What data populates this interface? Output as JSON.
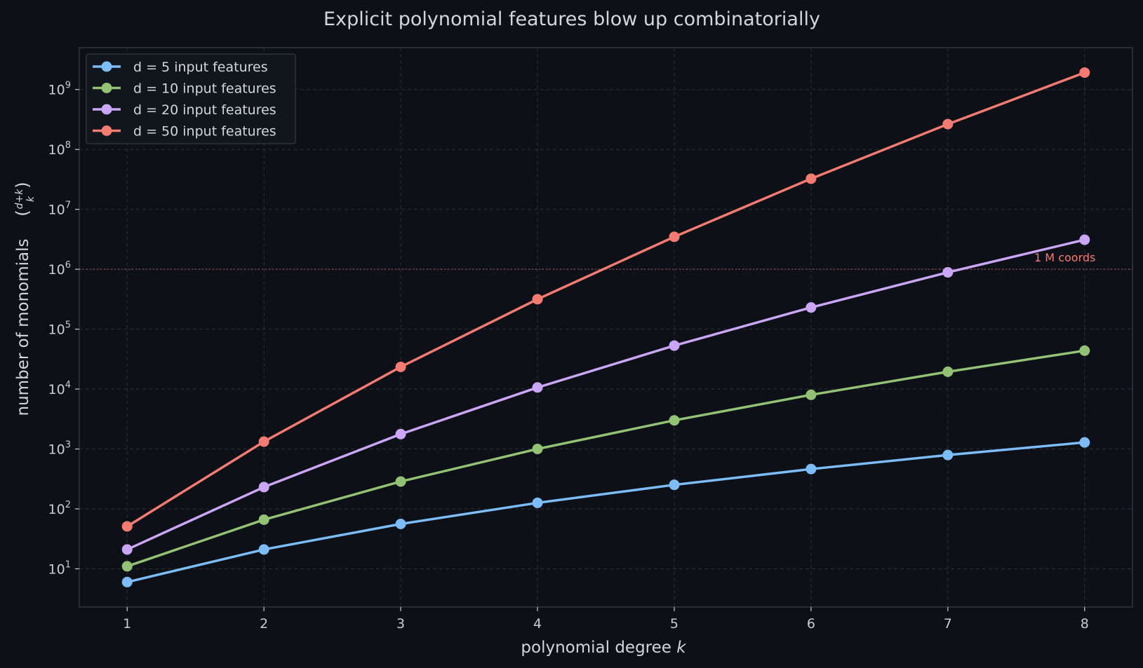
{
  "chart_data": {
    "type": "line",
    "title": "Explicit polynomial features blow up combinatorially",
    "xlabel": "polynomial degree",
    "xlabel_var": "k",
    "ylabel": "number of monomials",
    "ylabel_binom_top": "d+k",
    "ylabel_binom_bottom": "k",
    "y_scale": "log",
    "x": [
      1,
      2,
      3,
      4,
      5,
      6,
      7,
      8
    ],
    "xlim": [
      0.65,
      8.35
    ],
    "ylim": [
      2.3,
      5000000000
    ],
    "x_ticks": [
      "1",
      "2",
      "3",
      "4",
      "5",
      "6",
      "7",
      "8"
    ],
    "y_ticks": [
      {
        "base": "10",
        "exp": "1",
        "value": 10
      },
      {
        "base": "10",
        "exp": "2",
        "value": 100
      },
      {
        "base": "10",
        "exp": "3",
        "value": 1000
      },
      {
        "base": "10",
        "exp": "4",
        "value": 10000
      },
      {
        "base": "10",
        "exp": "5",
        "value": 100000
      },
      {
        "base": "10",
        "exp": "6",
        "value": 1000000
      },
      {
        "base": "10",
        "exp": "7",
        "value": 10000000
      },
      {
        "base": "10",
        "exp": "8",
        "value": 100000000
      },
      {
        "base": "10",
        "exp": "9",
        "value": 1000000000
      }
    ],
    "grid": true,
    "legend_position": "top-left",
    "series": [
      {
        "name": "d = 5 input features",
        "color": "#7cbcf8",
        "values": [
          6,
          21,
          56,
          126,
          252,
          462,
          792,
          1287
        ]
      },
      {
        "name": "d = 10 input features",
        "color": "#93c275",
        "values": [
          11,
          66,
          286,
          1001,
          3003,
          8008,
          19448,
          43758
        ]
      },
      {
        "name": "d = 20 input features",
        "color": "#cba6f7",
        "values": [
          21,
          231,
          1771,
          10626,
          53130,
          230230,
          888030,
          3108105
        ]
      },
      {
        "name": "d = 50 input features",
        "color": "#f47b72",
        "values": [
          51,
          1326,
          23426,
          316251,
          3478761,
          32468436,
          264385836,
          1916797311
        ]
      }
    ],
    "reference_line": {
      "value": 1000000,
      "label": "1 M coords",
      "color": "#f47b72"
    }
  }
}
